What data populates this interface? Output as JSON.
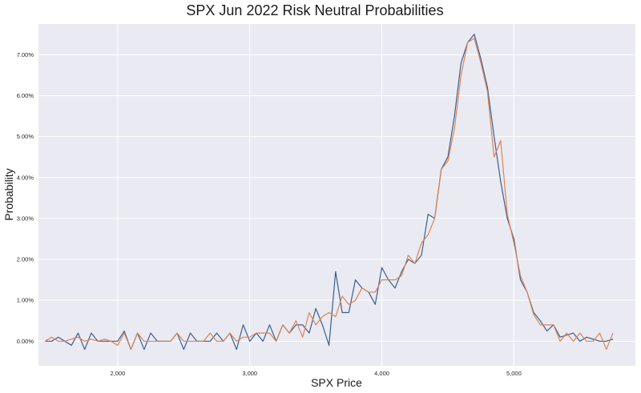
{
  "chart_data": {
    "type": "line",
    "title": "SPX Jun 2022 Risk Neutral Probabilities",
    "xlabel": "SPX Price",
    "ylabel": "Probability",
    "xlim": [
      1400,
      5920
    ],
    "ylim": [
      -0.006,
      0.0775
    ],
    "x_ticks": [
      2000,
      3000,
      4000,
      5000
    ],
    "x_tick_labels": [
      "2,000",
      "3,000",
      "4,000",
      "5,000"
    ],
    "y_ticks": [
      0,
      0.01,
      0.02,
      0.03,
      0.04,
      0.05,
      0.06,
      0.07
    ],
    "y_tick_labels": [
      "0.00%",
      "1.00%",
      "2.00%",
      "3.00%",
      "4.00%",
      "5.00%",
      "6.00%",
      "7.00%"
    ],
    "grid": true,
    "legend": "none",
    "colors": {
      "series1": "#3a5f93",
      "series2": "#dd8452",
      "background": "#eaeaf2"
    },
    "series": [
      {
        "x": [
          1450,
          1500,
          1550,
          1600,
          1650,
          1700,
          1750,
          1800,
          1850,
          1900,
          1950,
          2000,
          2050,
          2100,
          2150,
          2200,
          2250,
          2300,
          2350,
          2400,
          2450,
          2500,
          2550,
          2600,
          2650,
          2700,
          2750,
          2800,
          2850,
          2900,
          2950,
          3000,
          3050,
          3100,
          3150,
          3200,
          3250,
          3300,
          3350,
          3400,
          3450,
          3500,
          3550,
          3600,
          3650,
          3700,
          3750,
          3800,
          3850,
          3900,
          3950,
          4000,
          4050,
          4100,
          4150,
          4200,
          4250,
          4300,
          4350,
          4400,
          4450,
          4500,
          4550,
          4600,
          4650,
          4700,
          4750,
          4800,
          4850,
          4900,
          4950,
          5000,
          5050,
          5100,
          5150,
          5200,
          5250,
          5300,
          5350,
          5400,
          5450,
          5500,
          5550,
          5600,
          5650,
          5700,
          5750
        ],
        "values": [
          0.0,
          0.0,
          0.001,
          0.0,
          -0.001,
          0.002,
          -0.002,
          0.002,
          0.0,
          0.0,
          0.0,
          0.0,
          0.0025,
          -0.002,
          0.002,
          -0.002,
          0.002,
          0.0,
          0.0,
          0.0,
          0.002,
          -0.002,
          0.002,
          0.0,
          0.0,
          0.0,
          0.002,
          0.0,
          0.002,
          -0.002,
          0.004,
          0.0,
          0.002,
          0.0,
          0.004,
          0.0,
          0.004,
          0.002,
          0.004,
          0.004,
          0.002,
          0.008,
          0.004,
          -0.001,
          0.017,
          0.007,
          0.007,
          0.015,
          0.013,
          0.012,
          0.009,
          0.018,
          0.015,
          0.013,
          0.017,
          0.02,
          0.019,
          0.021,
          0.031,
          0.03,
          0.042,
          0.045,
          0.055,
          0.068,
          0.073,
          0.075,
          0.069,
          0.062,
          0.05,
          0.039,
          0.03,
          0.025,
          0.015,
          0.012,
          0.007,
          0.005,
          0.0025,
          0.004,
          0.001,
          0.0015,
          0.002,
          0.0,
          0.001,
          0.0005,
          0.0,
          0.0,
          0.0005
        ]
      },
      {
        "x": [
          1450,
          1500,
          1550,
          1600,
          1650,
          1700,
          1750,
          1800,
          1850,
          1900,
          1950,
          2000,
          2050,
          2100,
          2150,
          2200,
          2250,
          2300,
          2350,
          2400,
          2450,
          2500,
          2550,
          2600,
          2650,
          2700,
          2750,
          2800,
          2850,
          2900,
          2950,
          3000,
          3050,
          3100,
          3150,
          3200,
          3250,
          3300,
          3350,
          3400,
          3450,
          3500,
          3550,
          3600,
          3650,
          3700,
          3750,
          3800,
          3850,
          3900,
          3950,
          4000,
          4050,
          4100,
          4150,
          4200,
          4250,
          4300,
          4350,
          4400,
          4450,
          4500,
          4550,
          4600,
          4650,
          4700,
          4750,
          4800,
          4850,
          4900,
          4950,
          5000,
          5050,
          5100,
          5150,
          5200,
          5250,
          5300,
          5350,
          5400,
          5450,
          5500,
          5550,
          5600,
          5650,
          5700,
          5750
        ],
        "values": [
          0.0,
          0.001,
          0.0,
          0.0,
          0.0005,
          0.001,
          0.0,
          0.0005,
          0.0,
          0.0005,
          0.0,
          -0.001,
          0.002,
          -0.002,
          0.002,
          0.0,
          0.0,
          0.0,
          0.0,
          0.0,
          0.002,
          0.0,
          0.0,
          0.0,
          0.0,
          0.002,
          0.0,
          0.0,
          0.002,
          0.0,
          0.001,
          0.001,
          0.002,
          0.002,
          0.002,
          0.0,
          0.004,
          0.002,
          0.005,
          0.001,
          0.007,
          0.004,
          0.006,
          0.007,
          0.006,
          0.011,
          0.009,
          0.01,
          0.013,
          0.012,
          0.012,
          0.015,
          0.015,
          0.015,
          0.016,
          0.021,
          0.019,
          0.024,
          0.026,
          0.03,
          0.042,
          0.044,
          0.052,
          0.065,
          0.073,
          0.074,
          0.068,
          0.061,
          0.045,
          0.049,
          0.031,
          0.024,
          0.016,
          0.012,
          0.0065,
          0.004,
          0.004,
          0.004,
          0.0,
          0.002,
          0.0,
          0.002,
          0.0,
          0.0,
          0.002,
          -0.002,
          0.002
        ]
      }
    ]
  }
}
